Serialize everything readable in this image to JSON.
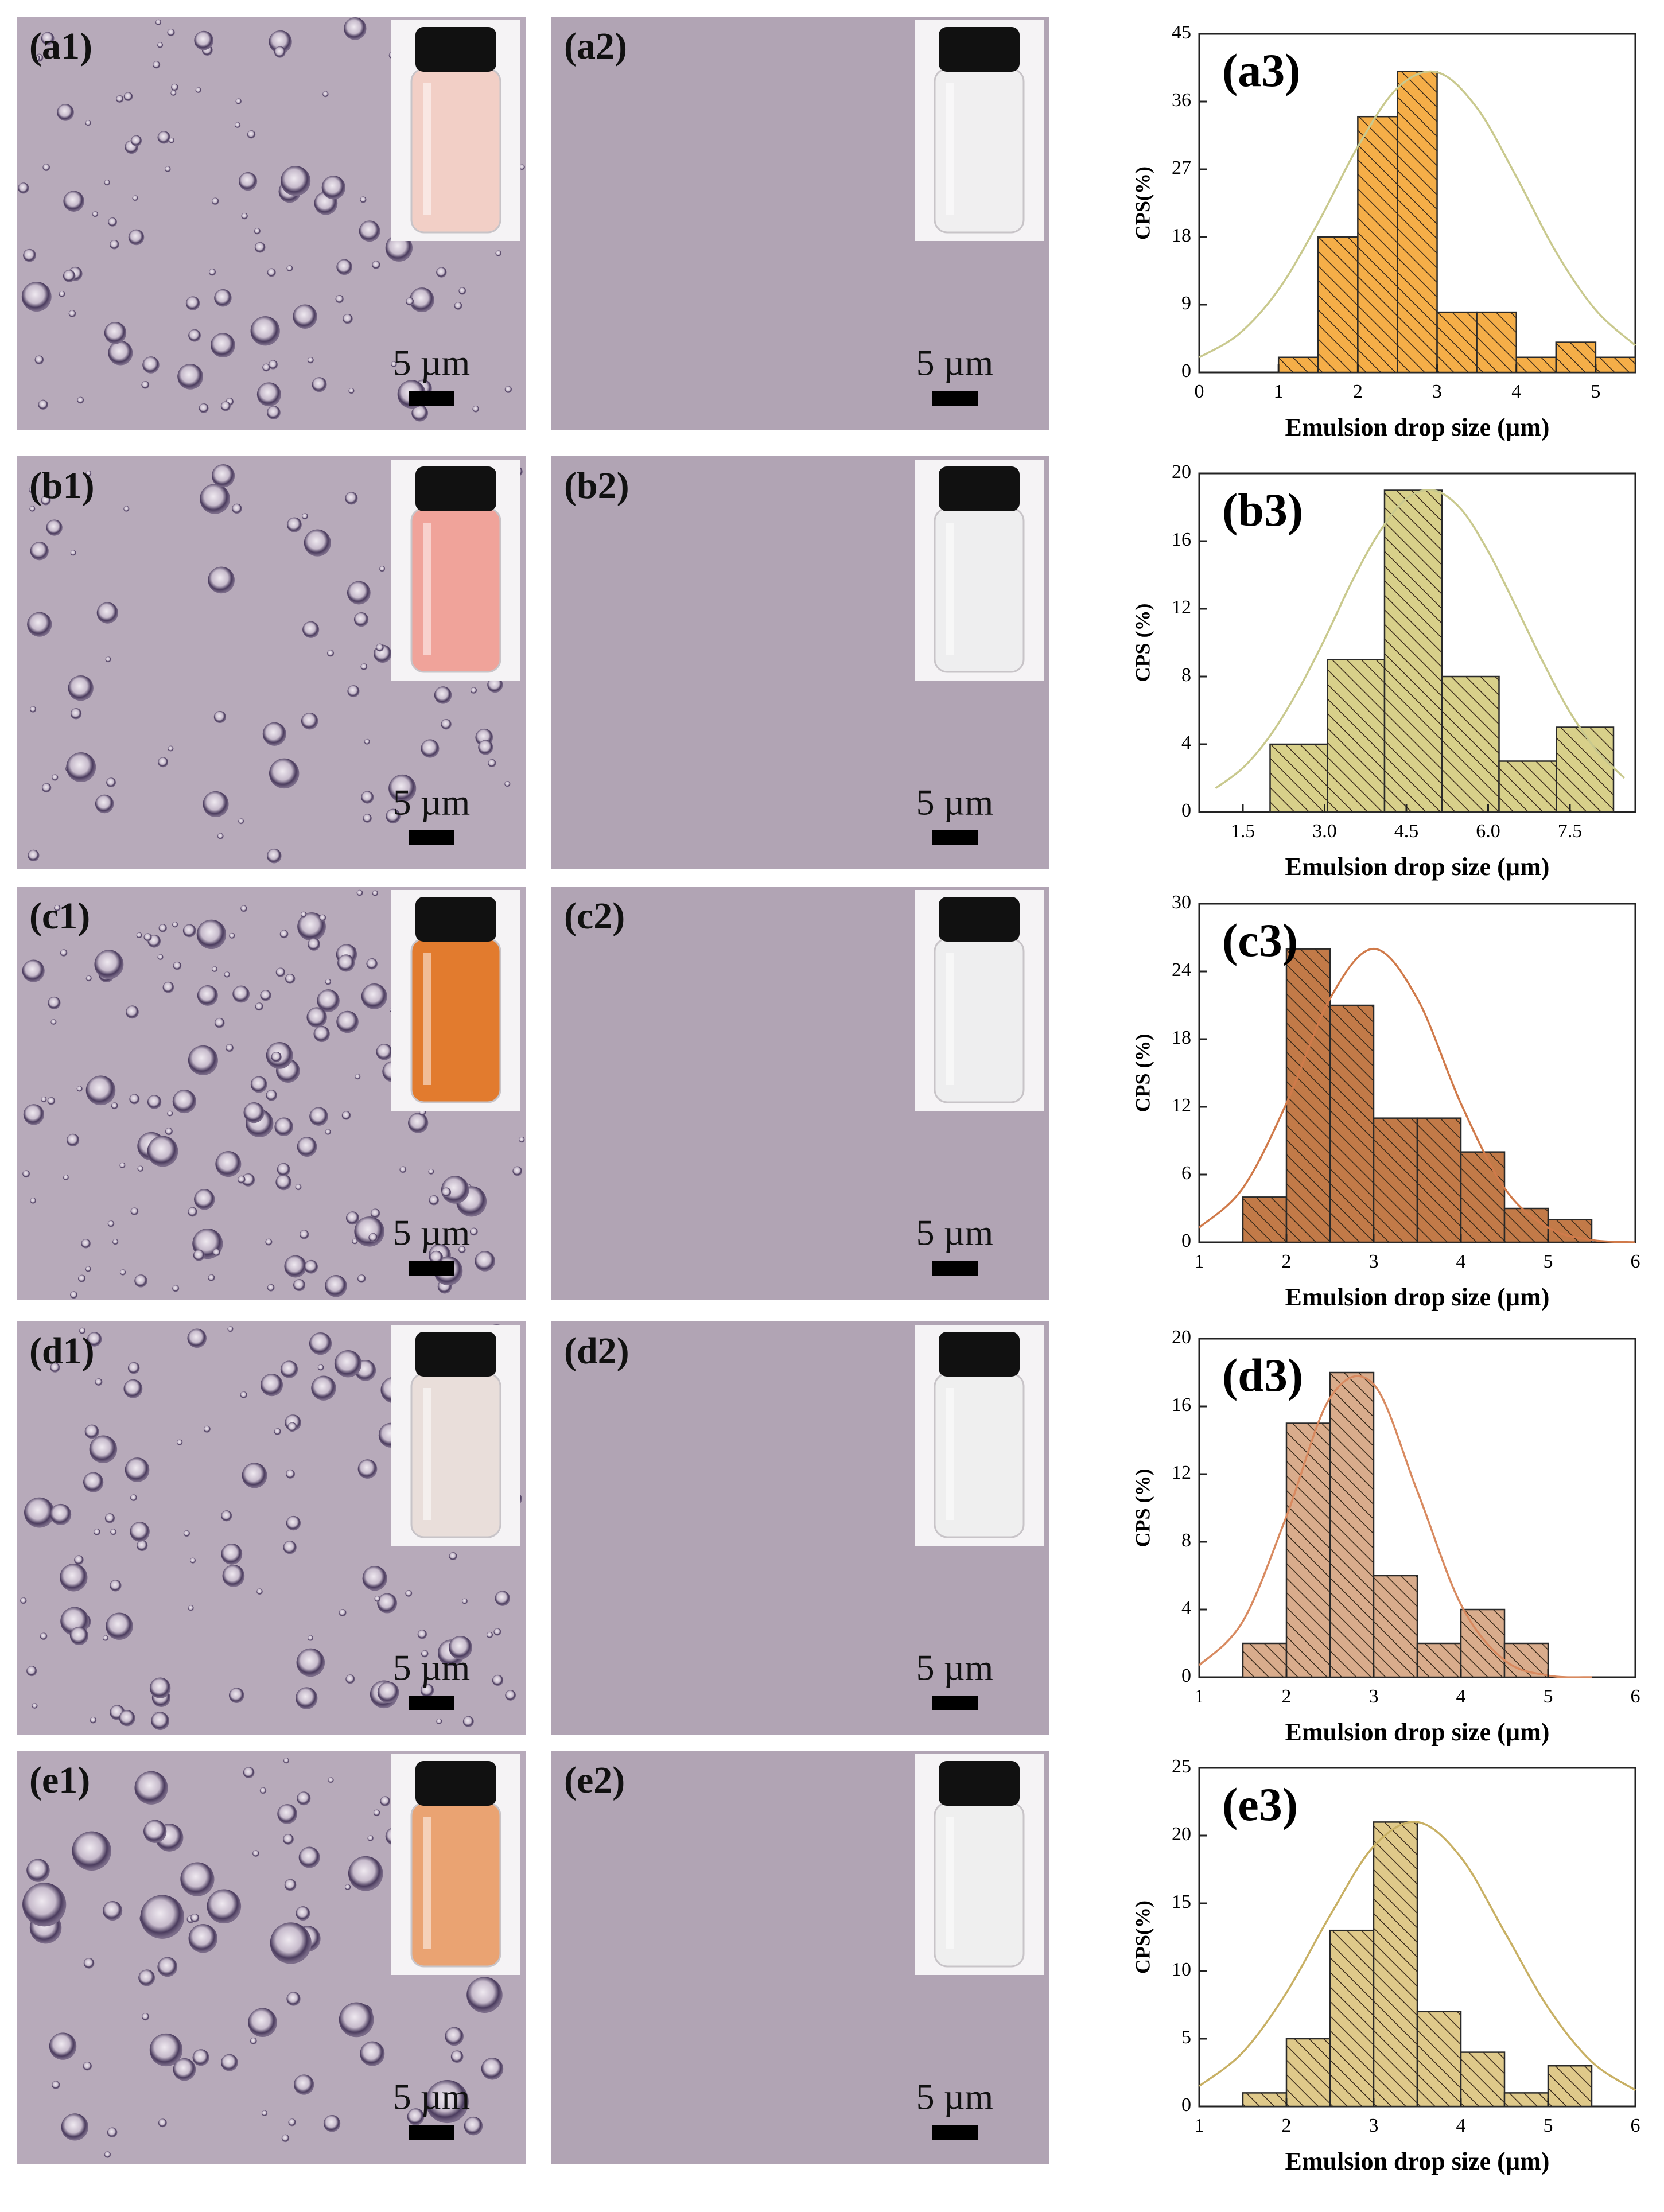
{
  "micrographs": [
    {
      "label": "(a1)",
      "scale": "5 µm",
      "liquid": "#f2cfc6"
    },
    {
      "label": "(a2)",
      "scale": "5 µm",
      "liquid": "#f0eff0"
    },
    {
      "label": "(b1)",
      "scale": "5 µm",
      "liquid": "#f0a39a"
    },
    {
      "label": "(b2)",
      "scale": "5 µm",
      "liquid": "#eeeeef"
    },
    {
      "label": "(c1)",
      "scale": "5 µm",
      "liquid": "#e27b2e"
    },
    {
      "label": "(c2)",
      "scale": "5 µm",
      "liquid": "#eeeeef"
    },
    {
      "label": "(d1)",
      "scale": "5 µm",
      "liquid": "#e9deda"
    },
    {
      "label": "(d2)",
      "scale": "5 µm",
      "liquid": "#efefef"
    },
    {
      "label": "(e1)",
      "scale": "5 µm",
      "liquid": "#eaa372"
    },
    {
      "label": "(e2)",
      "scale": "5 µm",
      "liquid": "#efefef"
    }
  ],
  "chart_data": [
    {
      "type": "histogram",
      "title": "(a3)",
      "x_label": "Emulsion drop size (µm)",
      "y_label": "CPS(%)",
      "bins": [
        1,
        1.5,
        2,
        2.5,
        3,
        3.5,
        4,
        4.5,
        5,
        5.5
      ],
      "values": [
        2,
        18,
        34,
        40,
        8,
        8,
        2,
        4,
        2
      ],
      "color": "#f5ae48",
      "fit": {
        "color": "#c9c98e",
        "x": [
          0,
          0.5,
          1,
          1.5,
          2,
          2.5,
          3,
          3.5,
          4,
          4.5,
          5,
          5.5
        ],
        "values": [
          2.0,
          5.1,
          11.0,
          19.9,
          30.0,
          37.8,
          39.9,
          35.2,
          26.0,
          16.0,
          8.3,
          3.6
        ]
      },
      "xlim": [
        0,
        5.5
      ],
      "ylim": [
        0,
        45
      ],
      "xticks": [
        0,
        1,
        2,
        3,
        4,
        5
      ],
      "yticks": [
        0,
        9,
        18,
        27,
        36,
        45
      ]
    },
    {
      "type": "histogram",
      "title": "(b3)",
      "x_label": "Emulsion drop size (µm)",
      "y_label": "CPS (%)",
      "bins": [
        2,
        3.05,
        4.1,
        5.15,
        6.2,
        7.25,
        8.3
      ],
      "values": [
        4,
        9,
        19,
        8,
        3,
        5
      ],
      "color": "#d8d08a",
      "fit": {
        "color": "#c9c98e",
        "x": [
          1,
          1.5,
          2,
          2.5,
          3,
          3.5,
          4,
          4.5,
          5,
          5.5,
          6,
          6.5,
          7,
          7.5,
          8,
          8.5
        ],
        "values": [
          1.4,
          2.6,
          4.5,
          7.1,
          10.2,
          13.6,
          16.5,
          18.5,
          19.0,
          17.9,
          15.4,
          12.2,
          8.9,
          5.9,
          3.6,
          2.0
        ]
      },
      "xlim": [
        0.7,
        8.7
      ],
      "ylim": [
        0,
        20
      ],
      "xticks": [
        1.5,
        {
          "value": 3,
          "label": "3.0"
        },
        4.5,
        {
          "value": 6,
          "label": "6.0"
        },
        7.5
      ],
      "yticks": [
        0,
        4,
        8,
        12,
        16,
        20
      ]
    },
    {
      "type": "histogram",
      "title": "(c3)",
      "x_label": "Emulsion drop size (µm)",
      "y_label": "CPS (%)",
      "bins": [
        1.5,
        2,
        2.5,
        3,
        3.5,
        4,
        4.5,
        5,
        5.5
      ],
      "values": [
        4,
        26,
        21,
        11,
        11,
        8,
        3,
        2
      ],
      "color": "#c27a48",
      "fit": {
        "color": "#d07a4a",
        "x": [
          1,
          1.5,
          2,
          2.5,
          3,
          3.5,
          4,
          4.5,
          5,
          5.5,
          6
        ],
        "values": [
          1.3,
          4.8,
          12.3,
          21.6,
          26,
          21.6,
          12.3,
          4.8,
          1.3,
          0.2,
          0
        ]
      },
      "xlim": [
        1,
        6
      ],
      "ylim": [
        0,
        30
      ],
      "xticks": [
        1,
        2,
        3,
        4,
        5,
        6
      ],
      "yticks": [
        0,
        6,
        12,
        18,
        24,
        30
      ]
    },
    {
      "type": "histogram",
      "title": "(d3)",
      "x_label": "Emulsion drop size (µm)",
      "y_label": "CPS (%)",
      "bins": [
        1.5,
        2,
        2.5,
        3,
        3.5,
        4,
        4.5,
        5
      ],
      "values": [
        2,
        15,
        18,
        6,
        2,
        4,
        2
      ],
      "color": "#d9ac8c",
      "fit": {
        "color": "#d88a60",
        "x": [
          1,
          1.5,
          2,
          2.5,
          3,
          3.5,
          4,
          4.5,
          5,
          5.5
        ],
        "values": [
          0.7,
          3.3,
          9.5,
          16.5,
          17.3,
          11.0,
          4.3,
          1.0,
          0.1,
          0
        ]
      },
      "xlim": [
        1,
        6
      ],
      "ylim": [
        0,
        20
      ],
      "xticks": [
        1,
        2,
        3,
        4,
        5,
        6
      ],
      "yticks": [
        0,
        4,
        8,
        12,
        16,
        20
      ]
    },
    {
      "type": "histogram",
      "title": "(e3)",
      "x_label": "Emulsion drop size (µm)",
      "y_label": "CPS(%)",
      "bins": [
        1.5,
        2,
        2.5,
        3,
        3.5,
        4,
        4.5,
        5,
        5.5
      ],
      "values": [
        1,
        5,
        13,
        21,
        7,
        4,
        1,
        3
      ],
      "color": "#dfc98a",
      "fit": {
        "color": "#c8b064",
        "x": [
          1,
          1.5,
          2,
          2.5,
          3,
          3.5,
          4,
          4.5,
          5,
          5.5,
          6
        ],
        "values": [
          1.5,
          4.0,
          8.4,
          14.1,
          19.2,
          21.0,
          18.4,
          12.9,
          7.3,
          3.3,
          1.2
        ]
      },
      "xlim": [
        1,
        6
      ],
      "ylim": [
        0,
        25
      ],
      "xticks": [
        1,
        2,
        3,
        4,
        5,
        6
      ],
      "yticks": [
        0,
        5,
        10,
        15,
        20,
        25
      ]
    }
  ]
}
